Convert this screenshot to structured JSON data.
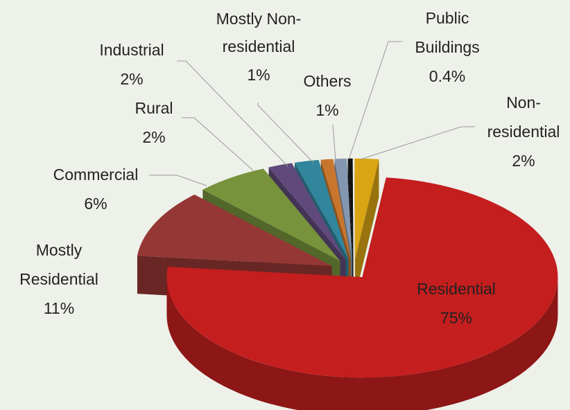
{
  "chart_data": {
    "type": "pie",
    "categories": [
      "Residential",
      "Mostly Residential",
      "Commercial",
      "Rural",
      "Industrial",
      "Mostly Non-residential",
      "Others",
      "Public Buildings",
      "Non-residential"
    ],
    "values": [
      75,
      11,
      6,
      2,
      2,
      1,
      1,
      0.4,
      2
    ],
    "value_labels": [
      "75%",
      "11%",
      "6%",
      "2%",
      "2%",
      "1%",
      "1%",
      "0.4%",
      "2%"
    ],
    "colors": [
      "#c41e1e",
      "#953735",
      "#77933c",
      "#604a7b",
      "#31859c",
      "#c8762e",
      "#8497b0",
      "#111111",
      "#d9a514"
    ]
  }
}
